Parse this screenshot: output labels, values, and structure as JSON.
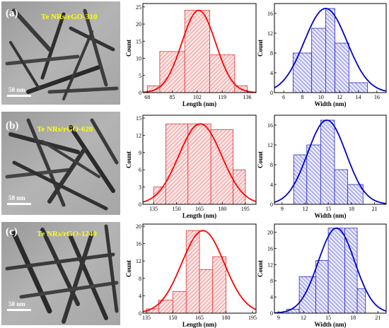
{
  "panels": [
    {
      "letter": "(a)",
      "sample": "Te NRs/rGO-310",
      "scale_bar": "50 nm",
      "length_hist": {
        "type": "bar",
        "color": "#ff0000",
        "xlabel": "Length (nm)",
        "ylabel": "Count",
        "xticks": [
          68,
          85,
          102,
          119,
          136
        ],
        "yticks": [
          0,
          5,
          10,
          15,
          20,
          25
        ],
        "xlim": [
          65,
          142
        ],
        "ylim": [
          0,
          26
        ],
        "bin_edges": [
          68,
          76.5,
          93.5,
          110.5,
          127.5,
          136
        ],
        "values": [
          2,
          12,
          24,
          11,
          2
        ],
        "fit": {
          "mean": 103,
          "sigma": 11.5,
          "amp": 24
        }
      },
      "width_hist": {
        "type": "bar",
        "color": "#0000cc",
        "xlabel": "Width (nm)",
        "ylabel": "Count",
        "xticks": [
          6,
          8,
          10,
          12,
          14,
          16
        ],
        "yticks": [
          0,
          4,
          8,
          12,
          16
        ],
        "xlim": [
          5,
          17
        ],
        "ylim": [
          0,
          18
        ],
        "bin_edges": [
          7,
          9,
          10.5,
          11.5,
          13,
          15
        ],
        "values": [
          8,
          13,
          17,
          10,
          2
        ],
        "fit": {
          "mean": 10.5,
          "sigma": 2.3,
          "amp": 17
        }
      }
    },
    {
      "letter": "(b)",
      "sample": "Te NRs/rGO-620",
      "scale_bar": "50 nm",
      "length_hist": {
        "type": "bar",
        "color": "#ff0000",
        "xlabel": "Length (nm)",
        "ylabel": "Count",
        "xticks": [
          135,
          150,
          165,
          180,
          195
        ],
        "yticks": [
          0,
          3,
          6,
          9,
          12,
          15
        ],
        "xlim": [
          128,
          202
        ],
        "ylim": [
          0,
          15.5
        ],
        "bin_edges": [
          135,
          143,
          157.5,
          172.5,
          187,
          195
        ],
        "values": [
          3,
          14,
          14,
          13,
          6
        ],
        "fit": {
          "mean": 165.5,
          "sigma": 14,
          "amp": 14
        }
      },
      "width_hist": {
        "type": "bar",
        "color": "#0000cc",
        "xlabel": "Width (nm)",
        "ylabel": "Count",
        "xticks": [
          9,
          12,
          15,
          18,
          21
        ],
        "yticks": [
          0,
          4,
          8,
          12,
          16
        ],
        "xlim": [
          8,
          22.5
        ],
        "ylim": [
          0,
          18
        ],
        "bin_edges": [
          10.5,
          12.2,
          14,
          15.8,
          17.5,
          19.5
        ],
        "values": [
          10,
          12,
          17,
          7,
          4
        ],
        "fit": {
          "mean": 14.8,
          "sigma": 2.5,
          "amp": 17
        }
      }
    },
    {
      "letter": "(c)",
      "sample": "Te NRs/rGO-1240",
      "scale_bar": "50 nm",
      "length_hist": {
        "type": "bar",
        "color": "#ff0000",
        "xlabel": "Length (nm)",
        "ylabel": "Count",
        "xticks": [
          135,
          150,
          165,
          180,
          195
        ],
        "yticks": [
          0,
          4,
          8,
          12,
          16,
          20
        ],
        "xlim": [
          133,
          197
        ],
        "ylim": [
          0,
          20.5
        ],
        "bin_edges": [
          135,
          142,
          150,
          157.5,
          165,
          172.5,
          180,
          187.5
        ],
        "values": [
          1,
          3,
          5,
          19,
          10,
          13,
          0
        ],
        "fit": {
          "mean": 167,
          "sigma": 12,
          "amp": 19
        }
      },
      "width_hist": {
        "type": "bar",
        "color": "#0000cc",
        "xlabel": "Width (nm)",
        "ylabel": "Count",
        "xticks": [
          9,
          12,
          15,
          18,
          21
        ],
        "yticks": [
          0,
          4,
          8,
          12,
          16,
          20
        ],
        "xlim": [
          8.5,
          22
        ],
        "ylim": [
          0,
          22
        ],
        "bin_edges": [
          10,
          11.5,
          13.5,
          15,
          17,
          18.5,
          19.5
        ],
        "values": [
          1,
          9,
          13,
          21,
          21,
          6
        ],
        "fit": {
          "mean": 16,
          "sigma": 2.2,
          "amp": 21
        }
      }
    }
  ]
}
